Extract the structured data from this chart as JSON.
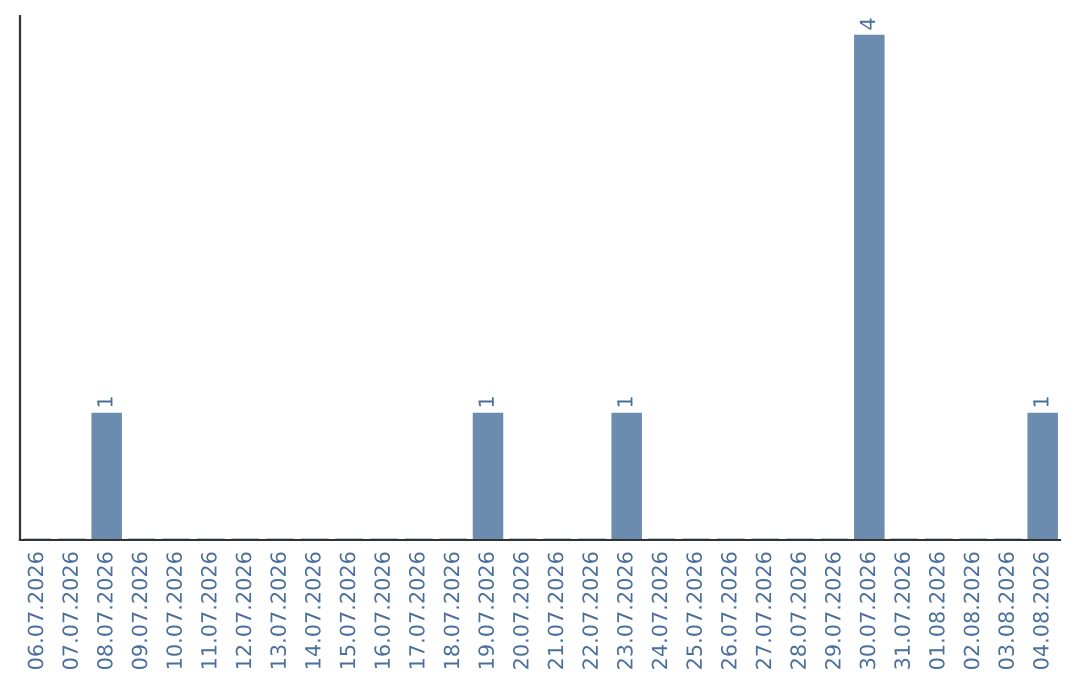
{
  "chart_data": {
    "type": "bar",
    "categories": [
      "06.07.2026",
      "07.07.2026",
      "08.07.2026",
      "09.07.2026",
      "10.07.2026",
      "11.07.2026",
      "12.07.2026",
      "13.07.2026",
      "14.07.2026",
      "15.07.2026",
      "16.07.2026",
      "17.07.2026",
      "18.07.2026",
      "19.07.2026",
      "20.07.2026",
      "21.07.2026",
      "22.07.2026",
      "23.07.2026",
      "24.07.2026",
      "25.07.2026",
      "26.07.2026",
      "27.07.2026",
      "28.07.2026",
      "29.07.2026",
      "30.07.2026",
      "31.07.2026",
      "01.08.2026",
      "02.08.2026",
      "03.08.2026",
      "04.08.2026"
    ],
    "values": [
      0,
      0,
      1,
      0,
      0,
      0,
      0,
      0,
      0,
      0,
      0,
      0,
      0,
      1,
      0,
      0,
      0,
      1,
      0,
      0,
      0,
      0,
      0,
      0,
      4,
      0,
      0,
      0,
      0,
      1
    ],
    "value_labels": [
      null,
      null,
      "1",
      null,
      null,
      null,
      null,
      null,
      null,
      null,
      null,
      null,
      null,
      "1",
      null,
      null,
      null,
      "1",
      null,
      null,
      null,
      null,
      null,
      null,
      "4",
      null,
      null,
      null,
      null,
      "1"
    ],
    "color": "#6b8cae",
    "tick_labels": "x",
    "grid": false,
    "legend": false
  }
}
